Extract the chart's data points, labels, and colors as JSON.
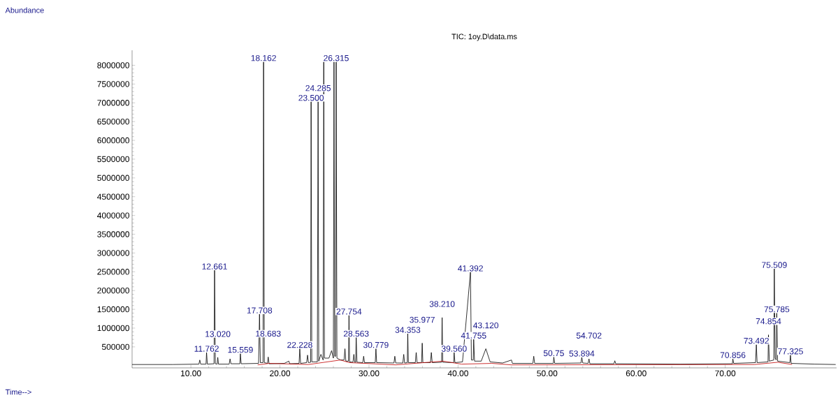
{
  "chart_data": {
    "type": "line",
    "title": "TIC: 1oy.D\\data.ms",
    "xlim": [
      3.4,
      82.5
    ],
    "ylim": [
      -60000,
      8400000
    ],
    "xticks": [
      {
        "value": 10,
        "label": "10.00"
      },
      {
        "value": 20,
        "label": "20.00"
      },
      {
        "value": 30,
        "label": "30.00"
      },
      {
        "value": 40,
        "label": "40.00"
      },
      {
        "value": 50,
        "label": "50.00"
      },
      {
        "value": 60,
        "label": "60.00"
      },
      {
        "value": 70,
        "label": "70.00"
      }
    ],
    "yticks": [
      500000,
      1000000,
      1500000,
      2000000,
      2500000,
      3000000,
      3500000,
      4000000,
      4500000,
      5000000,
      5500000,
      6000000,
      6500000,
      7000000,
      7500000,
      8000000
    ],
    "series": [
      {
        "color": "#000000",
        "x": [
          3.4,
          5,
          8,
          10.9,
          11.0,
          11.1,
          11.7,
          11.762,
          11.85,
          12.6,
          12.661,
          12.75,
          12.95,
          13.02,
          13.1,
          14.3,
          14.4,
          14.5,
          15.5,
          15.559,
          15.65,
          17.6,
          17.708,
          17.8,
          18.1,
          18.162,
          18.25,
          18.6,
          18.683,
          18.78,
          20.5,
          21.0,
          21.1,
          22.15,
          22.228,
          22.32,
          23.0,
          23.1,
          23.2,
          23.45,
          23.5,
          23.58,
          24.2,
          24.285,
          24.36,
          24.6,
          24.85,
          24.92,
          25.0,
          25.5,
          25.8,
          26.0,
          26.07,
          26.15,
          26.25,
          26.315,
          26.4,
          26.8,
          27.2,
          27.3,
          27.4,
          27.7,
          27.754,
          27.82,
          28.2,
          28.3,
          28.4,
          28.5,
          28.563,
          28.65,
          29.3,
          29.4,
          29.5,
          30.7,
          30.779,
          30.86,
          32.8,
          32.9,
          33.0,
          33.8,
          33.9,
          34.0,
          34.3,
          34.353,
          34.42,
          35.2,
          35.3,
          35.4,
          35.9,
          35.977,
          36.05,
          36.9,
          37.0,
          37.1,
          38.15,
          38.21,
          38.28,
          39.5,
          39.56,
          39.65,
          40.5,
          41.392,
          41.5,
          41.7,
          41.755,
          41.85,
          42.6,
          43.12,
          43.6,
          45,
          46,
          46.1,
          48.4,
          48.5,
          48.6,
          50.7,
          50.75,
          50.85,
          53.8,
          53.894,
          54.0,
          54.6,
          54.702,
          54.8,
          57.5,
          57.6,
          57.7,
          65,
          70.8,
          70.856,
          70.95,
          73.4,
          73.492,
          73.58,
          74.8,
          74.854,
          74.95,
          75.45,
          75.509,
          75.6,
          75.72,
          75.785,
          75.88,
          77.25,
          77.325,
          77.4,
          80,
          82.4
        ],
        "values": [
          30000,
          30000,
          30000,
          40000,
          150000,
          40000,
          40000,
          350000,
          40000,
          50000,
          2540000,
          50000,
          40000,
          220000,
          40000,
          40000,
          180000,
          50000,
          50000,
          320000,
          50000,
          60000,
          1370000,
          80000,
          80000,
          8090000,
          80000,
          60000,
          230000,
          50000,
          60000,
          120000,
          50000,
          60000,
          450000,
          60000,
          80000,
          280000,
          80000,
          90000,
          7030000,
          100000,
          100000,
          7030000,
          120000,
          300000,
          150000,
          8090000,
          200000,
          200000,
          400000,
          200000,
          8090000,
          250000,
          250000,
          8090000,
          200000,
          150000,
          150000,
          450000,
          120000,
          120000,
          1340000,
          100000,
          90000,
          300000,
          90000,
          90000,
          750000,
          90000,
          80000,
          250000,
          80000,
          80000,
          450000,
          80000,
          70000,
          250000,
          70000,
          70000,
          300000,
          70000,
          80000,
          850000,
          80000,
          80000,
          350000,
          80000,
          80000,
          600000,
          80000,
          80000,
          350000,
          80000,
          90000,
          1280000,
          90000,
          80000,
          350000,
          80000,
          100000,
          2490000,
          150000,
          150000,
          700000,
          120000,
          120000,
          450000,
          100000,
          70000,
          150000,
          60000,
          60000,
          250000,
          60000,
          60000,
          230000,
          60000,
          70000,
          220000,
          70000,
          60000,
          180000,
          50000,
          50000,
          130000,
          50000,
          40000,
          50000,
          180000,
          60000,
          80000,
          560000,
          80000,
          100000,
          820000,
          120000,
          150000,
          2580000,
          200000,
          150000,
          1400000,
          120000,
          80000,
          280000,
          60000,
          40000,
          30000
        ]
      },
      {
        "color": "#c00000",
        "x": [
          17.5,
          18.8,
          23.2,
          26.8,
          27.8,
          33,
          38.3,
          40.4,
          43.8,
          46,
          73.3,
          75.9,
          77.5
        ],
        "values": [
          20000,
          60000,
          30000,
          150000,
          80000,
          20000,
          120000,
          40000,
          60000,
          20000,
          30000,
          90000,
          30000
        ]
      }
    ],
    "annotations": [
      "Abundance",
      "Time-->",
      {
        "text": "11.762",
        "x": 11.762,
        "y": 350000
      },
      {
        "text": "12.661",
        "x": 12.661,
        "y": 2540000
      },
      {
        "text": "13.020",
        "x": 13.02,
        "y": 220000
      },
      {
        "text": "15.559",
        "x": 15.559,
        "y": 320000
      },
      {
        "text": "17.708",
        "x": 17.708,
        "y": 1370000
      },
      {
        "text": "18.162",
        "x": 18.162,
        "y": 8090000
      },
      {
        "text": "18.683",
        "x": 18.683,
        "y": 230000
      },
      {
        "text": "22.228",
        "x": 22.228,
        "y": 450000
      },
      {
        "text": "23.500",
        "x": 23.5,
        "y": 7030000
      },
      {
        "text": "24.285",
        "x": 24.285,
        "y": 7030000
      },
      {
        "text": "26.315",
        "x": 26.315,
        "y": 8090000
      },
      {
        "text": "27.754",
        "x": 27.754,
        "y": 1340000
      },
      {
        "text": "28.563",
        "x": 28.563,
        "y": 750000
      },
      {
        "text": "30.779",
        "x": 30.779,
        "y": 450000
      },
      {
        "text": "34.353",
        "x": 34.353,
        "y": 850000
      },
      {
        "text": "35.977",
        "x": 35.977,
        "y": 600000
      },
      {
        "text": "38.210",
        "x": 38.21,
        "y": 1280000
      },
      {
        "text": "39.560",
        "x": 39.56,
        "y": 350000
      },
      {
        "text": "41.392",
        "x": 41.392,
        "y": 2490000
      },
      {
        "text": "41.755",
        "x": 41.755,
        "y": 700000
      },
      {
        "text": "43.120",
        "x": 43.12,
        "y": 450000
      },
      {
        "text": "50.75",
        "x": 50.75,
        "y": 230000
      },
      {
        "text": "53.894",
        "x": 53.894,
        "y": 220000
      },
      {
        "text": "54.702",
        "x": 54.702,
        "y": 180000
      },
      {
        "text": "70.856",
        "x": 70.856,
        "y": 180000
      },
      {
        "text": "73.492",
        "x": 73.492,
        "y": 560000
      },
      {
        "text": "74.854",
        "x": 74.854,
        "y": 820000
      },
      {
        "text": "75.509",
        "x": 75.509,
        "y": 2580000
      },
      {
        "text": "75.785",
        "x": 75.785,
        "y": 1400000
      },
      {
        "text": "77.325",
        "x": 77.325,
        "y": 280000
      }
    ]
  }
}
